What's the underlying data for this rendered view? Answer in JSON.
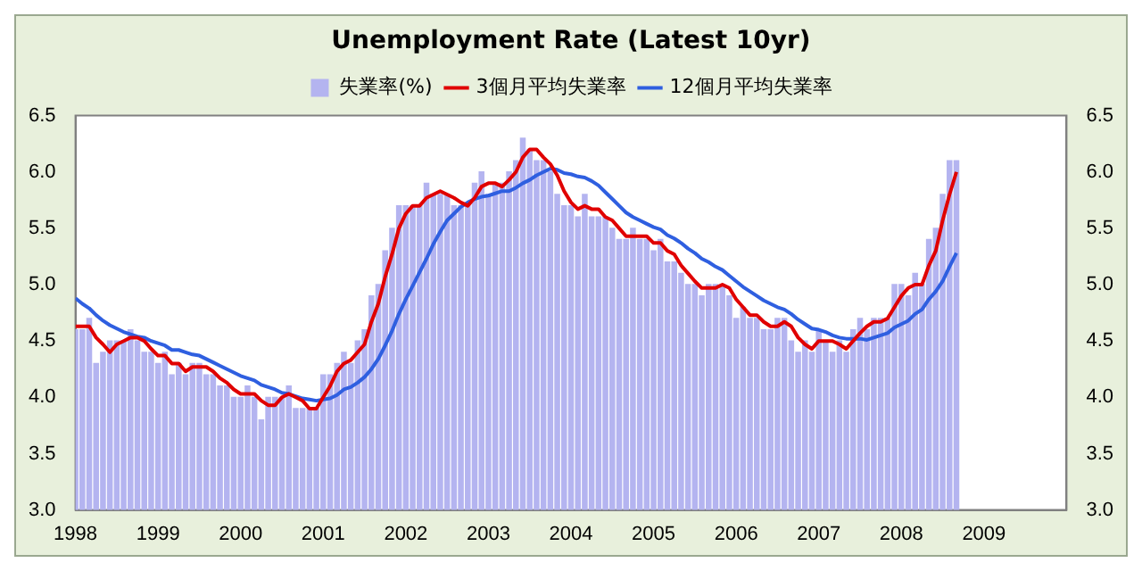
{
  "chart_data": {
    "type": "bar",
    "title": "Unemployment Rate (Latest 10yr)",
    "x": [
      "1998-01",
      "1998-02",
      "1998-03",
      "1998-04",
      "1998-05",
      "1998-06",
      "1998-07",
      "1998-08",
      "1998-09",
      "1998-10",
      "1998-11",
      "1998-12",
      "1999-01",
      "1999-02",
      "1999-03",
      "1999-04",
      "1999-05",
      "1999-06",
      "1999-07",
      "1999-08",
      "1999-09",
      "1999-10",
      "1999-11",
      "1999-12",
      "2000-01",
      "2000-02",
      "2000-03",
      "2000-04",
      "2000-05",
      "2000-06",
      "2000-07",
      "2000-08",
      "2000-09",
      "2000-10",
      "2000-11",
      "2000-12",
      "2001-01",
      "2001-02",
      "2001-03",
      "2001-04",
      "2001-05",
      "2001-06",
      "2001-07",
      "2001-08",
      "2001-09",
      "2001-10",
      "2001-11",
      "2001-12",
      "2002-01",
      "2002-02",
      "2002-03",
      "2002-04",
      "2002-05",
      "2002-06",
      "2002-07",
      "2002-08",
      "2002-09",
      "2002-10",
      "2002-11",
      "2002-12",
      "2003-01",
      "2003-02",
      "2003-03",
      "2003-04",
      "2003-05",
      "2003-06",
      "2003-07",
      "2003-08",
      "2003-09",
      "2003-10",
      "2003-11",
      "2003-12",
      "2004-01",
      "2004-02",
      "2004-03",
      "2004-04",
      "2004-05",
      "2004-06",
      "2004-07",
      "2004-08",
      "2004-09",
      "2004-10",
      "2004-11",
      "2004-12",
      "2005-01",
      "2005-02",
      "2005-03",
      "2005-04",
      "2005-05",
      "2005-06",
      "2005-07",
      "2005-08",
      "2005-09",
      "2005-10",
      "2005-11",
      "2005-12",
      "2006-01",
      "2006-02",
      "2006-03",
      "2006-04",
      "2006-05",
      "2006-06",
      "2006-07",
      "2006-08",
      "2006-09",
      "2006-10",
      "2006-11",
      "2006-12",
      "2007-01",
      "2007-02",
      "2007-03",
      "2007-04",
      "2007-05",
      "2007-06",
      "2007-07",
      "2007-08",
      "2007-09",
      "2007-10",
      "2007-11",
      "2007-12",
      "2008-01",
      "2008-02",
      "2008-03",
      "2008-04",
      "2008-05",
      "2008-06",
      "2008-07",
      "2008-08",
      "2008-09"
    ],
    "series": [
      {
        "name": "失業率(%)",
        "color": "#b4b4f0",
        "values": [
          4.6,
          4.6,
          4.7,
          4.3,
          4.4,
          4.5,
          4.5,
          4.5,
          4.6,
          4.5,
          4.4,
          4.4,
          4.3,
          4.4,
          4.2,
          4.3,
          4.2,
          4.3,
          4.3,
          4.2,
          4.2,
          4.1,
          4.1,
          4.0,
          4.0,
          4.1,
          4.0,
          3.8,
          4.0,
          4.0,
          4.0,
          4.1,
          3.9,
          3.9,
          3.9,
          3.9,
          4.2,
          4.2,
          4.3,
          4.4,
          4.3,
          4.5,
          4.6,
          4.9,
          5.0,
          5.3,
          5.5,
          5.7,
          5.7,
          5.7,
          5.7,
          5.9,
          5.8,
          5.8,
          5.8,
          5.7,
          5.7,
          5.7,
          5.9,
          6.0,
          5.8,
          5.9,
          5.9,
          6.0,
          6.1,
          6.3,
          6.2,
          6.1,
          6.1,
          6.0,
          5.8,
          5.7,
          5.7,
          5.6,
          5.8,
          5.6,
          5.6,
          5.6,
          5.5,
          5.4,
          5.4,
          5.5,
          5.4,
          5.4,
          5.3,
          5.4,
          5.2,
          5.2,
          5.1,
          5.0,
          5.0,
          4.9,
          5.0,
          5.0,
          5.0,
          4.9,
          4.7,
          4.8,
          4.7,
          4.7,
          4.6,
          4.6,
          4.7,
          4.7,
          4.5,
          4.4,
          4.5,
          4.4,
          4.6,
          4.5,
          4.4,
          4.5,
          4.4,
          4.6,
          4.7,
          4.6,
          4.7,
          4.7,
          4.7,
          5.0,
          5.0,
          4.9,
          5.1,
          5.0,
          5.4,
          5.5,
          5.8,
          6.1,
          6.1
        ]
      },
      {
        "type": "line",
        "name": "3個月平均失業率",
        "color": "#e00000",
        "values": [
          4.63,
          4.63,
          4.63,
          4.53,
          4.47,
          4.4,
          4.47,
          4.5,
          4.53,
          4.53,
          4.5,
          4.43,
          4.37,
          4.37,
          4.3,
          4.3,
          4.23,
          4.27,
          4.27,
          4.27,
          4.23,
          4.17,
          4.13,
          4.07,
          4.03,
          4.03,
          4.03,
          3.97,
          3.93,
          3.93,
          4.0,
          4.03,
          4.0,
          3.97,
          3.9,
          3.9,
          4.0,
          4.1,
          4.23,
          4.3,
          4.33,
          4.4,
          4.47,
          4.67,
          4.83,
          5.07,
          5.27,
          5.5,
          5.63,
          5.7,
          5.7,
          5.77,
          5.8,
          5.83,
          5.8,
          5.77,
          5.73,
          5.7,
          5.77,
          5.87,
          5.9,
          5.9,
          5.87,
          5.93,
          6.0,
          6.13,
          6.2,
          6.2,
          6.13,
          6.07,
          5.97,
          5.83,
          5.73,
          5.67,
          5.7,
          5.67,
          5.67,
          5.6,
          5.57,
          5.5,
          5.43,
          5.43,
          5.43,
          5.43,
          5.37,
          5.37,
          5.3,
          5.27,
          5.17,
          5.1,
          5.03,
          4.97,
          4.97,
          4.97,
          5.0,
          4.97,
          4.87,
          4.8,
          4.73,
          4.73,
          4.67,
          4.63,
          4.63,
          4.67,
          4.63,
          4.53,
          4.47,
          4.43,
          4.5,
          4.5,
          4.5,
          4.47,
          4.43,
          4.5,
          4.57,
          4.63,
          4.67,
          4.67,
          4.7,
          4.8,
          4.9,
          4.97,
          5.0,
          5.0,
          5.17,
          5.3,
          5.57,
          5.8,
          6.0
        ]
      },
      {
        "type": "line",
        "name": "12個月平均失業率",
        "color": "#2f5fe0",
        "values": [
          4.88,
          4.83,
          4.79,
          4.73,
          4.68,
          4.64,
          4.61,
          4.58,
          4.56,
          4.54,
          4.53,
          4.5,
          4.48,
          4.46,
          4.42,
          4.42,
          4.4,
          4.38,
          4.37,
          4.34,
          4.31,
          4.28,
          4.25,
          4.22,
          4.19,
          4.17,
          4.15,
          4.11,
          4.09,
          4.07,
          4.04,
          4.03,
          4.01,
          3.99,
          3.98,
          3.97,
          3.98,
          3.99,
          4.02,
          4.07,
          4.09,
          4.13,
          4.18,
          4.25,
          4.34,
          4.46,
          4.59,
          4.74,
          4.87,
          4.99,
          5.11,
          5.23,
          5.36,
          5.47,
          5.57,
          5.63,
          5.69,
          5.73,
          5.76,
          5.78,
          5.79,
          5.81,
          5.83,
          5.83,
          5.86,
          5.9,
          5.93,
          5.97,
          6.0,
          6.03,
          6.02,
          5.99,
          5.98,
          5.96,
          5.95,
          5.92,
          5.88,
          5.82,
          5.76,
          5.7,
          5.64,
          5.6,
          5.57,
          5.54,
          5.51,
          5.49,
          5.44,
          5.41,
          5.37,
          5.32,
          5.28,
          5.23,
          5.2,
          5.16,
          5.13,
          5.08,
          5.03,
          4.98,
          4.94,
          4.9,
          4.86,
          4.83,
          4.8,
          4.78,
          4.74,
          4.69,
          4.65,
          4.61,
          4.6,
          4.58,
          4.55,
          4.53,
          4.52,
          4.52,
          4.52,
          4.51,
          4.53,
          4.55,
          4.57,
          4.62,
          4.65,
          4.68,
          4.74,
          4.78,
          4.87,
          4.94,
          5.03,
          5.16,
          5.28
        ]
      }
    ],
    "xlim": [
      "1998-01",
      "2010-01"
    ],
    "xticks": [
      "1998",
      "1999",
      "2000",
      "2001",
      "2002",
      "2003",
      "2004",
      "2005",
      "2006",
      "2007",
      "2008",
      "2009"
    ],
    "ylim": [
      3.0,
      6.5
    ],
    "yticks": [
      {
        "value": 3.0,
        "label": "3.0"
      },
      {
        "value": 3.5,
        "label": "3.5"
      },
      {
        "value": 4.0,
        "label": "4.0"
      },
      {
        "value": 4.5,
        "label": "4.5"
      },
      {
        "value": 5.0,
        "label": "5.0"
      },
      {
        "value": 5.5,
        "label": "5.5"
      },
      {
        "value": 6.0,
        "label": "6.0"
      },
      {
        "value": 6.5,
        "label": "6.5"
      }
    ],
    "y2lim": [
      3.0,
      6.5
    ],
    "y2ticks": [
      {
        "value": 3.0,
        "label": "3.0"
      },
      {
        "value": 3.5,
        "label": "3.5"
      },
      {
        "value": 4.0,
        "label": "4.0"
      },
      {
        "value": 4.5,
        "label": "4.5"
      },
      {
        "value": 5.0,
        "label": "5.0"
      },
      {
        "value": 5.5,
        "label": "5.5"
      },
      {
        "value": 6.0,
        "label": "6.0"
      },
      {
        "value": 6.5,
        "label": "6.5"
      }
    ],
    "legend": "top"
  }
}
